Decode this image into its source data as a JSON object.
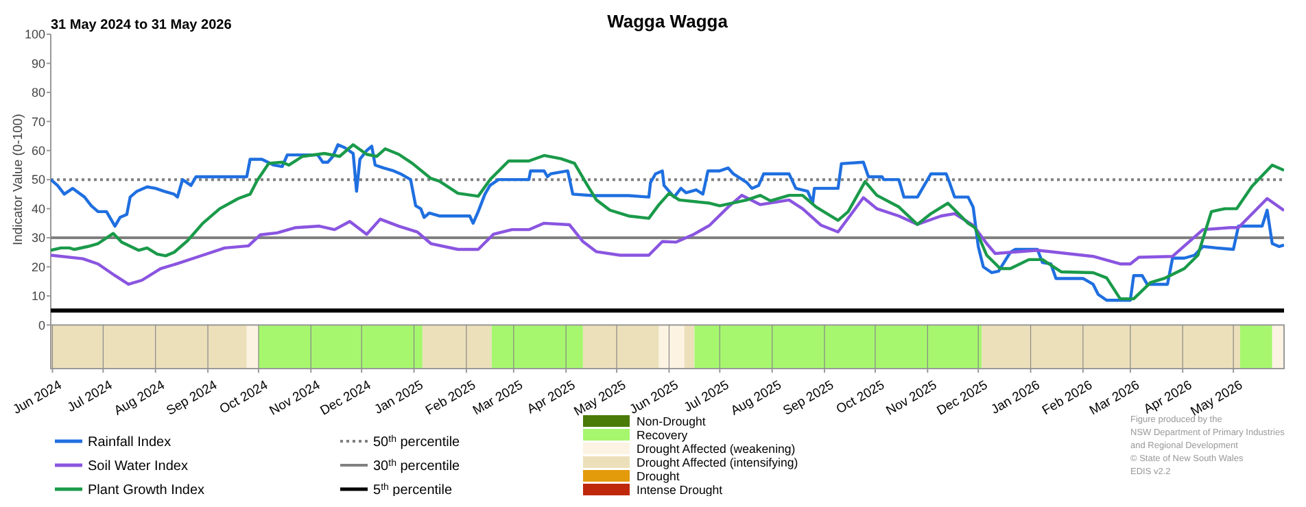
{
  "chart_data": {
    "type": "line",
    "title": "Wagga Wagga",
    "subtitle": "31 May 2024 to 31 May 2026",
    "ylabel": "Indicator Value (0-100)",
    "xlim": [
      "2024-05-31",
      "2026-05-31"
    ],
    "xticks": [
      {
        "value": "2024-06-01",
        "label": "Jun 2024"
      },
      {
        "value": "2024-07-01",
        "label": "Jul 2024"
      },
      {
        "value": "2024-08-01",
        "label": "Aug 2024"
      },
      {
        "value": "2024-09-01",
        "label": "Sep 2024"
      },
      {
        "value": "2024-10-01",
        "label": "Oct 2024"
      },
      {
        "value": "2024-11-01",
        "label": "Nov 2024"
      },
      {
        "value": "2024-12-01",
        "label": "Dec 2024"
      },
      {
        "value": "2025-01-01",
        "label": "Jan 2025"
      },
      {
        "value": "2025-02-01",
        "label": "Feb 2025"
      },
      {
        "value": "2025-03-01",
        "label": "Mar 2025"
      },
      {
        "value": "2025-04-01",
        "label": "Apr 2025"
      },
      {
        "value": "2025-05-01",
        "label": "May 2025"
      },
      {
        "value": "2025-06-01",
        "label": "Jun 2025"
      },
      {
        "value": "2025-07-01",
        "label": "Jul 2025"
      },
      {
        "value": "2025-08-01",
        "label": "Aug 2025"
      },
      {
        "value": "2025-09-01",
        "label": "Sep 2025"
      },
      {
        "value": "2025-10-01",
        "label": "Oct 2025"
      },
      {
        "value": "2025-11-01",
        "label": "Nov 2025"
      },
      {
        "value": "2025-12-01",
        "label": "Dec 2025"
      },
      {
        "value": "2026-01-01",
        "label": "Jan 2026"
      },
      {
        "value": "2026-02-01",
        "label": "Feb 2026"
      },
      {
        "value": "2026-03-01",
        "label": "Mar 2026"
      },
      {
        "value": "2026-04-01",
        "label": "Apr 2026"
      },
      {
        "value": "2026-05-01",
        "label": "May 2026"
      }
    ],
    "ylim": [
      -15,
      100
    ],
    "yticks": [
      0,
      10,
      20,
      30,
      40,
      50,
      60,
      70,
      80,
      90,
      100
    ],
    "grid": false,
    "legend": "bottom",
    "series": [
      {
        "name": "Rainfall Index",
        "color": "#1f6fe0",
        "x": [
          "2024-05-31",
          "2024-06-04",
          "2024-06-08",
          "2024-06-13",
          "2024-06-20",
          "2024-06-24",
          "2024-06-28",
          "2024-07-03",
          "2024-07-06",
          "2024-07-08",
          "2024-07-11",
          "2024-07-15",
          "2024-07-17",
          "2024-07-21",
          "2024-07-27",
          "2024-08-01",
          "2024-08-06",
          "2024-08-12",
          "2024-08-14",
          "2024-08-17",
          "2024-08-22",
          "2024-08-25",
          "2024-09-03",
          "2024-09-24",
          "2024-09-26",
          "2024-10-03",
          "2024-10-10",
          "2024-10-15",
          "2024-10-18",
          "2024-11-05",
          "2024-11-08",
          "2024-11-11",
          "2024-11-14",
          "2024-11-17",
          "2024-11-21",
          "2024-11-26",
          "2024-11-28",
          "2024-11-30",
          "2024-12-04",
          "2024-12-07",
          "2024-12-09",
          "2024-12-14",
          "2024-12-20",
          "2024-12-24",
          "2024-12-30",
          "2025-01-02",
          "2025-01-05",
          "2025-01-07",
          "2025-01-10",
          "2025-01-16",
          "2025-01-24",
          "2025-02-03",
          "2025-02-05",
          "2025-02-08",
          "2025-02-12",
          "2025-02-15",
          "2025-02-20",
          "2025-03-10",
          "2025-03-11",
          "2025-03-19",
          "2025-03-21",
          "2025-03-23",
          "2025-04-02",
          "2025-04-05",
          "2025-04-17",
          "2025-05-08",
          "2025-05-20",
          "2025-05-21",
          "2025-05-24",
          "2025-05-28",
          "2025-05-29",
          "2025-06-04",
          "2025-06-08",
          "2025-06-11",
          "2025-06-17",
          "2025-06-21",
          "2025-06-24",
          "2025-07-01",
          "2025-07-06",
          "2025-07-09",
          "2025-07-17",
          "2025-07-20",
          "2025-07-24",
          "2025-07-27",
          "2025-08-11",
          "2025-08-15",
          "2025-08-22",
          "2025-08-25",
          "2025-08-26",
          "2025-09-09",
          "2025-09-11",
          "2025-09-24",
          "2025-09-27",
          "2025-10-05",
          "2025-10-06",
          "2025-10-15",
          "2025-10-18",
          "2025-10-26",
          "2025-11-03",
          "2025-11-12",
          "2025-11-14",
          "2025-11-17",
          "2025-11-25",
          "2025-11-28",
          "2025-12-01",
          "2025-12-04",
          "2025-12-09",
          "2025-12-13",
          "2025-12-20",
          "2025-12-23",
          "2026-01-05",
          "2026-01-08",
          "2026-01-13",
          "2026-01-16",
          "2026-02-01",
          "2026-02-07",
          "2026-02-10",
          "2026-02-15",
          "2026-02-23",
          "2026-03-01",
          "2026-03-03",
          "2026-03-08",
          "2026-03-11",
          "2026-03-23",
          "2026-03-26",
          "2026-04-02",
          "2026-04-08",
          "2026-04-13",
          "2026-04-21",
          "2026-05-01",
          "2026-05-04",
          "2026-05-18",
          "2026-05-21",
          "2026-05-24",
          "2026-05-28",
          "2026-05-31"
        ],
        "values": [
          50,
          48,
          45,
          47,
          44,
          41,
          39,
          39,
          36,
          34,
          37,
          38,
          44,
          46,
          47.5,
          47,
          46,
          45,
          44,
          50,
          48,
          51,
          51,
          51,
          57,
          57,
          55,
          54.5,
          58.5,
          58.5,
          56,
          56,
          58,
          62,
          61,
          59,
          46,
          57,
          60,
          61.5,
          55,
          54,
          53,
          52,
          50,
          41,
          40,
          37,
          38.5,
          37.5,
          37.5,
          37.5,
          35,
          39,
          45,
          48,
          50,
          50,
          53,
          53,
          51,
          52,
          53,
          45,
          44.5,
          44.5,
          44,
          49,
          52,
          53,
          48,
          44,
          47,
          45.5,
          46.5,
          45,
          53,
          53,
          54,
          52,
          49,
          47,
          48,
          52,
          52,
          47,
          46,
          42,
          47,
          47,
          55.5,
          56,
          51,
          51,
          50,
          50,
          44,
          44,
          52,
          52,
          49,
          44,
          44,
          40.5,
          27,
          20,
          18,
          18.5,
          25,
          26,
          26,
          21.5,
          21,
          16,
          16,
          14,
          10.5,
          8.5,
          8.5,
          8.5,
          17,
          17,
          14,
          14,
          23,
          23,
          24,
          27,
          26.5,
          26,
          34,
          34,
          39.5,
          28,
          27,
          27.5
        ]
      },
      {
        "name": "Soil Water Index",
        "color": "#8a55e0",
        "x": [
          "2024-05-31",
          "2024-06-19",
          "2024-06-28",
          "2024-07-08",
          "2024-07-16",
          "2024-07-24",
          "2024-08-04",
          "2024-08-15",
          "2024-08-29",
          "2024-09-11",
          "2024-09-25",
          "2024-10-02",
          "2024-10-12",
          "2024-10-23",
          "2024-11-06",
          "2024-11-15",
          "2024-11-24",
          "2024-12-04",
          "2024-12-12",
          "2024-12-23",
          "2025-01-03",
          "2025-01-11",
          "2025-01-27",
          "2025-02-08",
          "2025-02-17",
          "2025-02-28",
          "2025-03-10",
          "2025-03-19",
          "2025-04-03",
          "2025-04-11",
          "2025-04-19",
          "2025-05-03",
          "2025-05-20",
          "2025-05-28",
          "2025-06-05",
          "2025-06-15",
          "2025-06-25",
          "2025-07-06",
          "2025-07-14",
          "2025-07-25",
          "2025-08-11",
          "2025-08-19",
          "2025-08-30",
          "2025-09-09",
          "2025-09-24",
          "2025-10-02",
          "2025-10-15",
          "2025-10-26",
          "2025-11-09",
          "2025-11-17",
          "2025-11-28",
          "2025-12-06",
          "2025-12-11",
          "2026-01-05",
          "2026-02-07",
          "2026-02-23",
          "2026-03-01",
          "2026-03-06",
          "2026-03-26",
          "2026-04-13",
          "2026-04-29",
          "2026-05-04",
          "2026-05-21",
          "2026-05-31"
        ],
        "values": [
          24,
          22.8,
          21,
          17,
          14,
          15.4,
          19.4,
          21.3,
          24,
          26.5,
          27.2,
          31,
          31.7,
          33.5,
          34,
          32.8,
          35.6,
          31.2,
          36.4,
          34,
          32,
          28,
          26,
          26,
          31.2,
          32.8,
          32.8,
          35,
          34.5,
          28.7,
          25.2,
          24,
          24,
          28.7,
          28.5,
          31,
          34.3,
          40.6,
          44.6,
          41.4,
          43,
          40,
          34.3,
          32,
          43.8,
          40,
          37.5,
          34.6,
          37.5,
          38.3,
          34.3,
          28,
          24.6,
          25.7,
          23.6,
          21,
          21,
          23.3,
          23.6,
          32.8,
          33.5,
          33.5,
          43.5,
          39.4
        ]
      },
      {
        "name": "Plant Growth Index",
        "color": "#1a9a4a",
        "x": [
          "2024-05-31",
          "2024-06-06",
          "2024-06-11",
          "2024-06-14",
          "2024-06-22",
          "2024-06-28",
          "2024-07-07",
          "2024-07-12",
          "2024-07-22",
          "2024-07-27",
          "2024-08-02",
          "2024-08-07",
          "2024-08-12",
          "2024-08-20",
          "2024-08-29",
          "2024-09-08",
          "2024-09-19",
          "2024-09-26",
          "2024-09-30",
          "2024-10-07",
          "2024-10-15",
          "2024-10-19",
          "2024-10-27",
          "2024-11-09",
          "2024-11-18",
          "2024-11-26",
          "2024-12-04",
          "2024-12-10",
          "2024-12-15",
          "2024-12-23",
          "2024-12-31",
          "2025-01-11",
          "2025-01-16",
          "2025-01-27",
          "2025-02-08",
          "2025-02-15",
          "2025-02-26",
          "2025-03-10",
          "2025-03-19",
          "2025-03-29",
          "2025-04-06",
          "2025-04-14",
          "2025-04-19",
          "2025-04-27",
          "2025-05-08",
          "2025-05-20",
          "2025-05-26",
          "2025-06-01",
          "2025-06-07",
          "2025-06-25",
          "2025-07-01",
          "2025-07-17",
          "2025-07-25",
          "2025-07-31",
          "2025-08-11",
          "2025-08-19",
          "2025-08-27",
          "2025-09-09",
          "2025-09-15",
          "2025-09-25",
          "2025-10-02",
          "2025-10-15",
          "2025-10-26",
          "2025-11-03",
          "2025-11-13",
          "2025-11-25",
          "2025-11-29",
          "2025-12-06",
          "2025-12-14",
          "2025-12-20",
          "2025-12-31",
          "2026-01-08",
          "2026-01-19",
          "2026-02-07",
          "2026-02-15",
          "2026-02-23",
          "2026-03-03",
          "2026-03-13",
          "2026-03-21",
          "2026-04-02",
          "2026-04-10",
          "2026-04-18",
          "2026-04-26",
          "2026-05-03",
          "2026-05-12",
          "2026-05-24",
          "2026-05-31"
        ],
        "values": [
          25.7,
          26.5,
          26.5,
          26,
          27,
          28,
          31.5,
          28.5,
          25.7,
          26.5,
          24.4,
          23.8,
          25,
          29,
          35,
          40,
          43.5,
          45,
          49.5,
          55.6,
          56,
          55,
          58,
          59,
          58,
          62,
          58.7,
          58,
          60.6,
          58.7,
          55.6,
          50.4,
          49.5,
          45.3,
          44.3,
          50,
          56.4,
          56.4,
          58.3,
          57.2,
          55.6,
          47.7,
          43,
          39.5,
          37.5,
          36.7,
          41.4,
          45.3,
          43,
          41.9,
          41,
          43,
          44.6,
          42.7,
          44.6,
          44.6,
          40.6,
          36,
          39,
          49.3,
          44.6,
          40.6,
          34.6,
          38.3,
          41.9,
          35,
          33.5,
          24,
          19.4,
          19.4,
          22.5,
          22.5,
          18.3,
          18,
          16.2,
          9,
          9,
          14.6,
          16,
          19.4,
          24,
          39,
          40,
          40,
          47.7,
          55,
          53.2
        ]
      }
    ],
    "ref_lines": [
      {
        "axis": "y",
        "value": 50,
        "label": "50$^{th}$ percentile",
        "color": "#808080",
        "line_style": "dotted"
      },
      {
        "axis": "y",
        "value": 30,
        "label": "30$^{th}$ percentile",
        "color": "#808080",
        "line_style": "solid"
      },
      {
        "axis": "y",
        "value": 5,
        "label": "5$^{th}$ percentile",
        "color": "#000000",
        "line_style": "solid"
      }
    ],
    "bands": [
      {
        "axis": "x",
        "from": "2024-10-01",
        "to": "2025-01-06",
        "label": "Recovery",
        "color": "#a6f76e"
      },
      {
        "axis": "x",
        "from": "2024-09-24",
        "to": "2024-10-01",
        "label": "Drought Affected (weakening)",
        "color": "#fcf3e3"
      },
      {
        "axis": "x",
        "from": "2024-05-31",
        "to": "2024-09-24",
        "label": "Drought Affected (intensifying)",
        "color": "#ece0bb"
      },
      {
        "axis": "x",
        "from": "2025-01-06",
        "to": "2025-02-16",
        "color": "#ece0bb"
      },
      {
        "axis": "x",
        "from": "2025-02-16",
        "to": "2025-04-11",
        "color": "#a6f76e"
      },
      {
        "axis": "x",
        "from": "2025-04-11",
        "to": "2025-05-26",
        "color": "#ece0bb"
      },
      {
        "axis": "x",
        "from": "2025-05-26",
        "to": "2025-06-10",
        "color": "#fcf3e3"
      },
      {
        "axis": "x",
        "from": "2025-06-10",
        "to": "2025-06-16",
        "color": "#ece0bb"
      },
      {
        "axis": "x",
        "from": "2025-06-16",
        "to": "2025-12-03",
        "color": "#a6f76e"
      },
      {
        "axis": "x",
        "from": "2025-12-03",
        "to": "2026-05-05",
        "color": "#ece0bb"
      },
      {
        "axis": "x",
        "from": "2026-05-05",
        "to": "2026-05-24",
        "color": "#a6f76e"
      },
      {
        "axis": "x",
        "from": "2026-05-24",
        "to": "2026-05-31",
        "color": "#fcf3e3"
      }
    ],
    "annotations": [
      "Non-Drought",
      "Drought",
      "Intense Drought",
      "Figure produced by the",
      "NSW Department of Primary Industries",
      "and Regional Development",
      "© State of New South Wales",
      "EDIS v2.2"
    ]
  }
}
